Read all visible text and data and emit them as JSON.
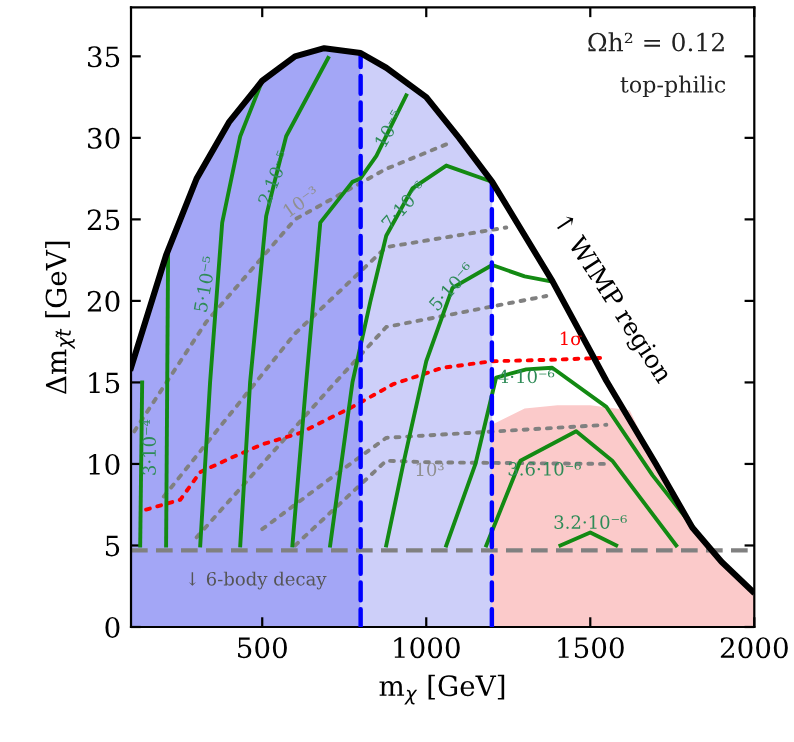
{
  "chart_data": {
    "type": "line",
    "xlabel": "m$_{χ}$ [GeV]",
    "ylabel": "Δm$_{χt̃}$ [GeV]",
    "xlim": [
      100,
      2000
    ],
    "ylim": [
      0,
      38
    ],
    "xticks": [
      500,
      1000,
      1500,
      2000
    ],
    "yticks": [
      0,
      5,
      10,
      15,
      20,
      25,
      30,
      35
    ],
    "grid": false,
    "legend": false,
    "series": [
      {
        "type": "area",
        "color": "#a3a6f6",
        "x": [
          100,
          207,
          300,
          400,
          500,
          600,
          689,
          800
        ],
        "values": [
          15.9,
          22.8,
          27.5,
          31,
          33.5,
          35,
          35.5,
          35.2
        ]
      },
      {
        "type": "area",
        "color": "#cdcff9",
        "x": [
          800,
          878,
          1000,
          1100,
          1201
        ],
        "values": [
          35.2,
          34.3,
          32.5,
          30,
          27.3
        ]
      },
      {
        "type": "area",
        "color": "#fbcaca",
        "x": [
          1200,
          1300,
          1400,
          1500,
          1620,
          1700,
          1811,
          1900,
          2000
        ],
        "values": [
          12.4,
          13.4,
          13.6,
          13.6,
          13.3,
          10,
          6.1,
          4,
          2.2
        ]
      },
      {
        "type": "line",
        "color": "#808080",
        "line_style": "dotted",
        "x": [
          110,
          329,
          600,
          878,
          1073
        ],
        "values": [
          12,
          18.7,
          25,
          28.1,
          29.7
        ]
      },
      {
        "type": "line",
        "color": "#808080",
        "line_style": "dotted",
        "x": [
          200,
          400,
          600,
          878,
          1244
        ],
        "values": [
          8,
          13,
          18,
          23.3,
          24.5
        ]
      },
      {
        "type": "line",
        "color": "#808080",
        "line_style": "dotted",
        "x": [
          300,
          500,
          700,
          878,
          1366
        ],
        "values": [
          5.5,
          10,
          14.5,
          18.4,
          20.3
        ]
      },
      {
        "type": "line",
        "color": "#808080",
        "line_style": "dotted",
        "x": [
          500,
          700,
          878,
          1549
        ],
        "values": [
          6,
          9,
          11.6,
          12.4
        ]
      },
      {
        "type": "line",
        "color": "#808080",
        "line_style": "dotted",
        "x": [
          600,
          878,
          1010,
          1549
        ],
        "values": [
          5,
          10.2,
          10.1,
          10
        ]
      },
      {
        "type": "line",
        "color": "#ff0000",
        "line_style": "dotted",
        "x": [
          146,
          250,
          311,
          408,
          500,
          616,
          775,
          900,
          1050,
          1201,
          1400,
          1530
        ],
        "values": [
          7.2,
          7.8,
          9.5,
          10.4,
          11.2,
          11.9,
          13.5,
          14.9,
          15.9,
          16.3,
          16.4,
          16.5
        ]
      },
      {
        "color": "#138a13",
        "x": [
          128,
          134
        ],
        "values": [
          5,
          15
        ]
      },
      {
        "color": "#138a13",
        "x": [
          207,
          213
        ],
        "values": [
          5,
          22.8
        ]
      },
      {
        "color": "#138a13",
        "x": [
          311,
          341,
          378,
          433,
          500
        ],
        "values": [
          5,
          15,
          24.8,
          30.1,
          33.5
        ]
      },
      {
        "color": "#138a13",
        "x": [
          433,
          463,
          512,
          540,
          573,
          701
        ],
        "values": [
          5,
          15,
          25.2,
          27.5,
          30.1,
          34.9
        ]
      },
      {
        "color": "#138a13",
        "x": [
          592,
          634,
          677,
          775,
          799,
          848,
          939
        ],
        "values": [
          5,
          15,
          24.8,
          27.3,
          27.5,
          28.9,
          32.6
        ]
      },
      {
        "color": "#138a13",
        "x": [
          707,
          775,
          830,
          878,
          958,
          1061,
          1201
        ],
        "values": [
          5,
          15,
          20,
          24,
          26.9,
          28.3,
          27.3
        ]
      },
      {
        "color": "#138a13",
        "x": [
          878,
          930,
          1000,
          1080,
          1201,
          1300,
          1378
        ],
        "values": [
          5,
          10,
          16.3,
          20.8,
          22.2,
          21.5,
          21.2
        ]
      },
      {
        "color": "#138a13",
        "x": [
          1061,
          1150,
          1213,
          1305,
          1384,
          1549,
          1690,
          1811
        ],
        "values": [
          5,
          10,
          15.3,
          15.8,
          15.9,
          13.5,
          9.3,
          6.2
        ]
      },
      {
        "color": "#138a13",
        "x": [
          1183,
          1287,
          1457,
          1567,
          1762
        ],
        "values": [
          5,
          10.2,
          12,
          10.2,
          5
        ]
      },
      {
        "color": "#138a13",
        "x": [
          1409,
          1500,
          1579
        ],
        "values": [
          5,
          5.8,
          5
        ]
      },
      {
        "color": "#0000ff",
        "line_style": "dashed",
        "x": [
          800,
          800
        ],
        "values": [
          0,
          35.2
        ]
      },
      {
        "color": "#0000ff",
        "line_style": "dashed",
        "x": [
          1200,
          1200
        ],
        "values": [
          0,
          27.3
        ]
      },
      {
        "color": "#000000",
        "x": [
          100,
          207,
          300,
          400,
          500,
          600,
          689,
          800,
          878,
          1000,
          1100,
          1201,
          1385,
          1549,
          1700,
          1811,
          1900,
          1994
        ],
        "values": [
          15.9,
          22.8,
          27.5,
          31,
          33.5,
          35,
          35.5,
          35.2,
          34.3,
          32.5,
          30,
          27.3,
          21.2,
          15.1,
          10,
          6.1,
          4,
          2.2
        ]
      }
    ],
    "ref_lines": [
      {
        "axis": "y",
        "value": 4.7,
        "color": "#808080",
        "line_style": "dashed"
      }
    ],
    "annotations": [
      "Ωh² = 0.12",
      "top-philic",
      "↑ WIMP region",
      "↓ 6-body decay",
      {
        "text": "3·10⁻⁴",
        "x": 160,
        "y": 11
      },
      {
        "text": "5·10⁻⁵",
        "x": 330,
        "y": 21
      },
      {
        "text": "2·10⁻⁵",
        "x": 540,
        "y": 27.5
      },
      {
        "text": "10⁻⁵",
        "x": 890,
        "y": 30.5
      },
      {
        "text": "7·10⁻⁶",
        "x": 935,
        "y": 25.8
      },
      {
        "text": "5·10⁻⁶",
        "x": 1080,
        "y": 20.8
      },
      {
        "text": "4·10⁻⁶",
        "x": 1305,
        "y": 15.8
      },
      {
        "text": "3.6·10⁻⁶",
        "x": 1360,
        "y": 9.6
      },
      {
        "text": "3.2·10⁻⁶",
        "x": 1500,
        "y": 5.8
      },
      {
        "text": "10⁻³",
        "x": 620,
        "y": 26
      },
      {
        "text": "10³",
        "x": 1010,
        "y": 10.1
      },
      {
        "text": "1σ",
        "x": 1440,
        "y": 17.6
      }
    ]
  }
}
